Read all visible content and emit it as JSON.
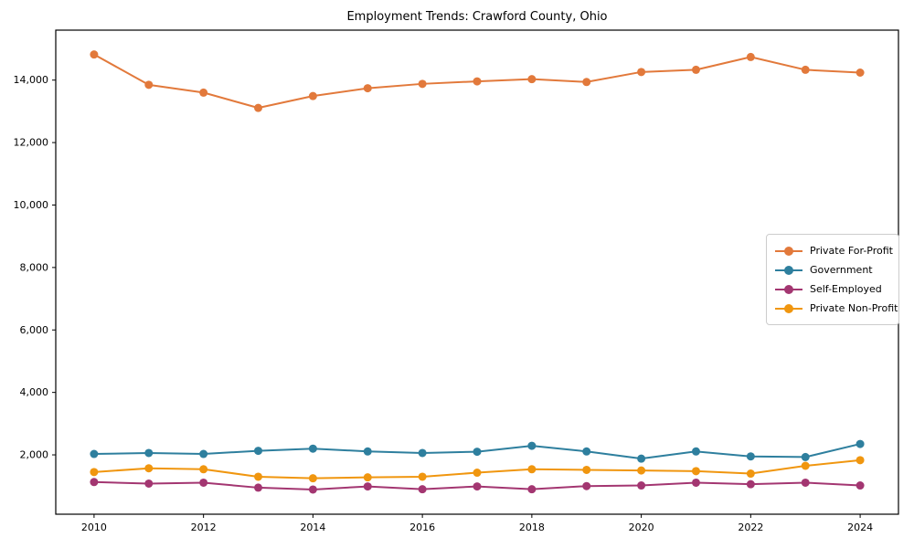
{
  "figure": {
    "title": "Employment Trends: Crawford County, Ohio"
  },
  "chart_data": {
    "type": "line",
    "title": "Employment Trends: Crawford County, Ohio",
    "xlabel": "",
    "ylabel": "",
    "x": [
      2010,
      2011,
      2012,
      2013,
      2014,
      2015,
      2016,
      2017,
      2018,
      2019,
      2020,
      2021,
      2022,
      2023,
      2024
    ],
    "series": [
      {
        "name": "Private For-Profit",
        "color": "#e2793b",
        "values": [
          14820,
          13850,
          13600,
          13110,
          13490,
          13740,
          13880,
          13960,
          14030,
          13940,
          14260,
          14330,
          14740,
          14330,
          14240
        ]
      },
      {
        "name": "Government",
        "color": "#2e7f9e",
        "values": [
          2030,
          2060,
          2030,
          2130,
          2200,
          2110,
          2060,
          2100,
          2290,
          2110,
          1880,
          2110,
          1950,
          1930,
          2350
        ]
      },
      {
        "name": "Self-Employed",
        "color": "#a33671",
        "values": [
          1130,
          1080,
          1110,
          950,
          890,
          990,
          900,
          990,
          900,
          1000,
          1020,
          1110,
          1060,
          1110,
          1020
        ]
      },
      {
        "name": "Private Non-Profit",
        "color": "#f0960f",
        "values": [
          1450,
          1570,
          1540,
          1300,
          1250,
          1280,
          1300,
          1430,
          1540,
          1520,
          1500,
          1480,
          1400,
          1650,
          1830
        ]
      }
    ],
    "xlim": [
      2009.3,
      2024.7
    ],
    "ylim": [
      100,
      15600
    ],
    "xticks": [
      2010,
      2012,
      2014,
      2016,
      2018,
      2020,
      2022,
      2024
    ],
    "yticks": [
      2000,
      4000,
      6000,
      8000,
      10000,
      12000,
      14000
    ],
    "grid": false,
    "legend_position": "center right",
    "marker": "circle",
    "axis_color": "#000000"
  }
}
